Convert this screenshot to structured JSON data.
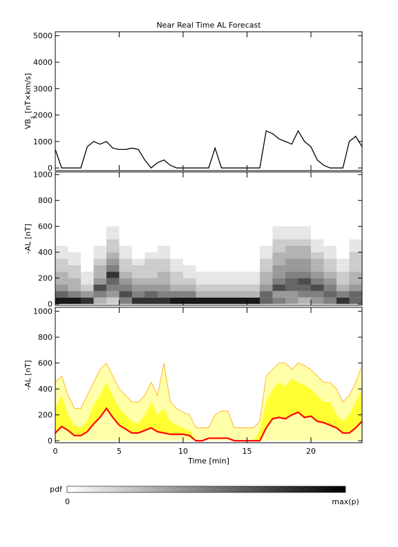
{
  "chart_data": [
    {
      "type": "line",
      "title": "Near Real Time AL Forecast",
      "ylabel": [
        "VB",
        "s",
        "[nT×km/s]"
      ],
      "x": [
        0,
        0.5,
        1,
        1.5,
        2,
        2.5,
        3,
        3.5,
        4,
        4.5,
        5,
        5.5,
        6,
        6.5,
        7,
        7.5,
        8,
        8.5,
        9,
        9.5,
        10,
        10.5,
        11,
        11.5,
        12,
        12.5,
        13,
        13.5,
        14,
        14.5,
        15,
        15.5,
        16,
        16.5,
        17,
        17.5,
        18,
        18.5,
        19,
        19.5,
        20,
        20.5,
        21,
        21.5,
        22,
        22.5,
        23,
        23.5,
        24
      ],
      "series": [
        {
          "color": "#000000",
          "values": [
            700,
            0,
            0,
            0,
            0,
            800,
            1000,
            900,
            1000,
            750,
            700,
            700,
            750,
            700,
            300,
            0,
            200,
            300,
            100,
            0,
            0,
            0,
            0,
            0,
            0,
            750,
            0,
            0,
            0,
            0,
            0,
            0,
            0,
            1400,
            1300,
            1100,
            1000,
            900,
            1400,
            1000,
            800,
            300,
            100,
            0,
            0,
            0,
            1000,
            1200,
            800
          ]
        }
      ],
      "xlim": [
        0,
        24
      ],
      "xticks": [
        0,
        5,
        10,
        15,
        20
      ],
      "ylim": [
        -100,
        5150
      ],
      "yticks": [
        0,
        1000,
        2000,
        3000,
        4000,
        5000
      ]
    },
    {
      "type": "heatmap",
      "ylabel": [
        "-AL [nT]"
      ],
      "time_edges": [
        0,
        1,
        2,
        3,
        4,
        5,
        6,
        7,
        8,
        9,
        10,
        11,
        12,
        13,
        14,
        15,
        16,
        17,
        18,
        19,
        20,
        21,
        22,
        23,
        24
      ],
      "al_edges": [
        0,
        50,
        100,
        150,
        200,
        250,
        300,
        350,
        400,
        450,
        500,
        550,
        600
      ],
      "pdf": [
        [
          0.9,
          0.6,
          0.4,
          0.3,
          0.3,
          0.2,
          0.2,
          0.1,
          0.1,
          0,
          0,
          0
        ],
        [
          0.9,
          0.5,
          0.3,
          0.3,
          0.2,
          0.2,
          0.1,
          0.1,
          0,
          0,
          0,
          0
        ],
        [
          0.8,
          0.4,
          0.2,
          0.1,
          0.1,
          0,
          0,
          0,
          0,
          0,
          0,
          0
        ],
        [
          0.3,
          0.5,
          0.7,
          0.4,
          0.3,
          0.3,
          0.2,
          0.1,
          0.1,
          0,
          0,
          0
        ],
        [
          0.2,
          0.4,
          0.5,
          0.6,
          0.8,
          0.5,
          0.4,
          0.3,
          0.2,
          0.2,
          0.1,
          0.1
        ],
        [
          0.5,
          0.7,
          0.5,
          0.4,
          0.3,
          0.2,
          0.2,
          0.1,
          0.1,
          0,
          0,
          0
        ],
        [
          0.8,
          0.5,
          0.4,
          0.3,
          0.2,
          0.2,
          0.1,
          0,
          0,
          0,
          0,
          0
        ],
        [
          0.8,
          0.6,
          0.4,
          0.3,
          0.2,
          0.2,
          0.2,
          0.1,
          0,
          0,
          0,
          0
        ],
        [
          0.8,
          0.5,
          0.4,
          0.3,
          0.3,
          0.2,
          0.2,
          0.1,
          0.1,
          0,
          0,
          0
        ],
        [
          0.9,
          0.5,
          0.3,
          0.2,
          0.2,
          0.1,
          0.1,
          0,
          0,
          0,
          0,
          0
        ],
        [
          0.9,
          0.5,
          0.3,
          0.2,
          0.1,
          0.1,
          0,
          0,
          0,
          0,
          0,
          0
        ],
        [
          0.9,
          0.3,
          0.2,
          0.1,
          0.1,
          0,
          0,
          0,
          0,
          0,
          0,
          0
        ],
        [
          0.9,
          0.3,
          0.2,
          0.1,
          0.1,
          0,
          0,
          0,
          0,
          0,
          0,
          0
        ],
        [
          0.9,
          0.3,
          0.2,
          0.1,
          0.1,
          0,
          0,
          0,
          0,
          0,
          0,
          0
        ],
        [
          0.9,
          0.3,
          0.2,
          0.1,
          0.1,
          0,
          0,
          0,
          0,
          0,
          0,
          0
        ],
        [
          0.9,
          0.3,
          0.2,
          0.1,
          0.1,
          0,
          0,
          0,
          0,
          0,
          0,
          0
        ],
        [
          0.6,
          0.6,
          0.4,
          0.3,
          0.3,
          0.2,
          0.2,
          0.1,
          0.1,
          0,
          0,
          0
        ],
        [
          0.5,
          0.4,
          0.7,
          0.5,
          0.4,
          0.4,
          0.3,
          0.3,
          0.2,
          0.2,
          0.1,
          0.1
        ],
        [
          0.4,
          0.4,
          0.6,
          0.6,
          0.5,
          0.4,
          0.4,
          0.3,
          0.3,
          0.2,
          0.1,
          0.1
        ],
        [
          0.3,
          0.5,
          0.6,
          0.7,
          0.5,
          0.4,
          0.4,
          0.3,
          0.3,
          0.2,
          0.1,
          0.1
        ],
        [
          0.4,
          0.5,
          0.7,
          0.5,
          0.4,
          0.3,
          0.3,
          0.2,
          0.1,
          0.1,
          0,
          0
        ],
        [
          0.5,
          0.6,
          0.5,
          0.4,
          0.3,
          0.2,
          0.2,
          0.1,
          0.1,
          0,
          0,
          0
        ],
        [
          0.8,
          0.5,
          0.3,
          0.2,
          0.2,
          0.1,
          0.1,
          0,
          0,
          0,
          0,
          0
        ],
        [
          0.6,
          0.6,
          0.4,
          0.3,
          0.3,
          0.2,
          0.2,
          0.2,
          0.1,
          0.1,
          0,
          0
        ]
      ],
      "xlim": [
        0,
        24
      ],
      "xticks": [
        0,
        5,
        10,
        15,
        20
      ],
      "ylim": [
        -10,
        1020
      ],
      "yticks": [
        0,
        200,
        400,
        600,
        800,
        1000
      ]
    },
    {
      "type": "band",
      "ylabel": [
        "-AL [nT]"
      ],
      "xlabel": "Time [min]",
      "x": [
        0,
        0.5,
        1,
        1.5,
        2,
        2.5,
        3,
        3.5,
        4,
        4.5,
        5,
        5.5,
        6,
        6.5,
        7,
        7.5,
        8,
        8.5,
        9,
        9.5,
        10,
        10.5,
        11,
        11.5,
        12,
        12.5,
        13,
        13.5,
        14,
        14.5,
        15,
        15.5,
        16,
        16.5,
        17,
        17.5,
        18,
        18.5,
        19,
        19.5,
        20,
        20.5,
        21,
        21.5,
        22,
        22.5,
        23,
        23.5,
        24
      ],
      "series": [
        {
          "color": "#ffffaa",
          "edge_color": "#ffa500",
          "values": [
            450,
            500,
            350,
            250,
            250,
            350,
            450,
            550,
            600,
            500,
            400,
            350,
            300,
            300,
            350,
            450,
            350,
            600,
            300,
            250,
            220,
            200,
            100,
            100,
            100,
            200,
            230,
            230,
            100,
            100,
            100,
            100,
            150,
            500,
            550,
            600,
            600,
            550,
            600,
            580,
            550,
            500,
            450,
            450,
            400,
            300,
            350,
            450,
            580
          ]
        },
        {
          "color": "#ffff33",
          "values": [
            250,
            350,
            200,
            120,
            100,
            150,
            280,
            350,
            450,
            350,
            250,
            200,
            150,
            130,
            200,
            300,
            200,
            250,
            150,
            120,
            100,
            80,
            0,
            0,
            20,
            20,
            20,
            20,
            0,
            0,
            0,
            0,
            80,
            300,
            400,
            450,
            420,
            480,
            450,
            430,
            400,
            350,
            300,
            300,
            200,
            150,
            200,
            300,
            400
          ]
        },
        {
          "color": "#ff0000",
          "values": [
            60,
            110,
            80,
            40,
            40,
            70,
            130,
            180,
            250,
            180,
            120,
            90,
            60,
            60,
            80,
            100,
            70,
            60,
            50,
            50,
            50,
            40,
            0,
            0,
            20,
            20,
            20,
            20,
            0,
            0,
            0,
            0,
            0,
            100,
            170,
            180,
            170,
            200,
            220,
            180,
            190,
            150,
            140,
            120,
            100,
            60,
            60,
            100,
            150
          ]
        }
      ],
      "xlim": [
        0,
        24
      ],
      "xticks": [
        0,
        5,
        10,
        15,
        20
      ],
      "ylim": [
        -15,
        1030
      ],
      "yticks": [
        0,
        200,
        400,
        600,
        800,
        1000
      ]
    }
  ],
  "colorbar": {
    "label": "pdf",
    "min_label": "0",
    "max_label": "max(p)"
  }
}
